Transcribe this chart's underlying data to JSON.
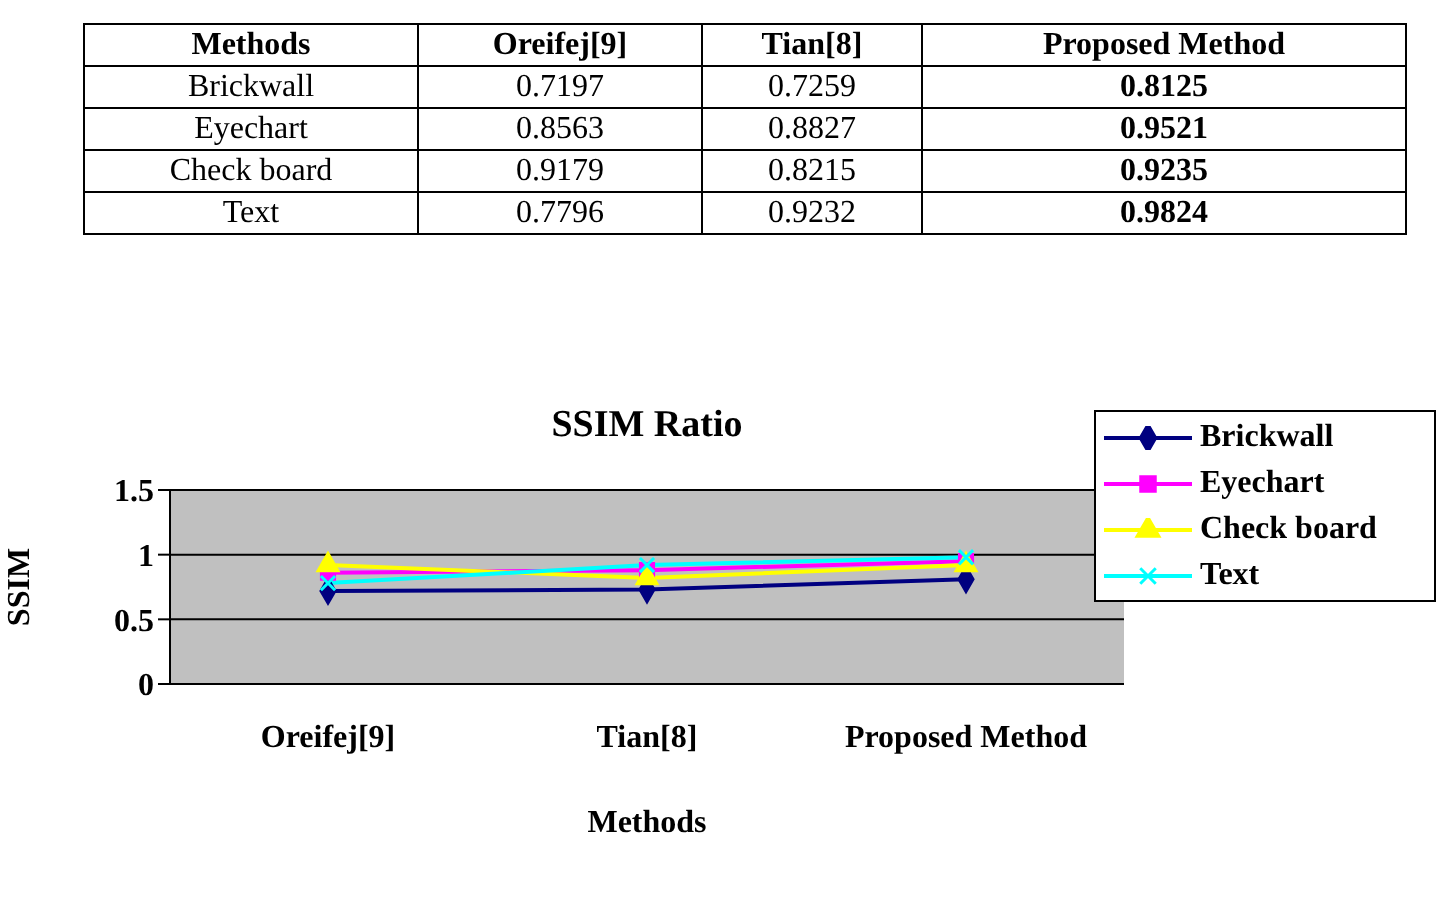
{
  "chart_data": [
    {
      "type": "heatmap",
      "ylabel": "Methods",
      "categories": [
        "Oreifej[9]",
        "Tian[8]",
        "Proposed Method"
      ],
      "y_categories": [
        "Brickwall",
        "Eyechart",
        "Check board",
        "Text"
      ],
      "cells": [
        [
          0.7197,
          0.7259,
          0.8125
        ],
        [
          0.8563,
          0.8827,
          0.9521
        ],
        [
          0.9179,
          0.8215,
          0.9235
        ],
        [
          0.7796,
          0.9232,
          0.9824
        ]
      ],
      "data_labels": true
    },
    {
      "type": "line",
      "title": "SSIM Ratio",
      "xlabel": "Methods",
      "ylabel": "SSIM",
      "categories": [
        "Oreifej[9]",
        "Tian[8]",
        "Proposed Method"
      ],
      "series": [
        {
          "name": "Brickwall",
          "color": "#000080",
          "marker": "diamond",
          "values": [
            0.72,
            0.73,
            0.81
          ]
        },
        {
          "name": "Eyechart",
          "color": "#ff00ff",
          "marker": "square",
          "values": [
            0.86,
            0.88,
            0.95
          ]
        },
        {
          "name": "Check board",
          "color": "#ffff00",
          "marker": "triangle",
          "values": [
            0.92,
            0.82,
            0.92
          ]
        },
        {
          "name": "Text",
          "color": "#00ffff",
          "marker": "cross",
          "values": [
            0.78,
            0.92,
            0.98
          ]
        }
      ],
      "ylim": [
        0,
        1.5
      ],
      "yticks": [
        0,
        0.5,
        1,
        1.5
      ],
      "grid": "y",
      "legend": "top right"
    }
  ]
}
